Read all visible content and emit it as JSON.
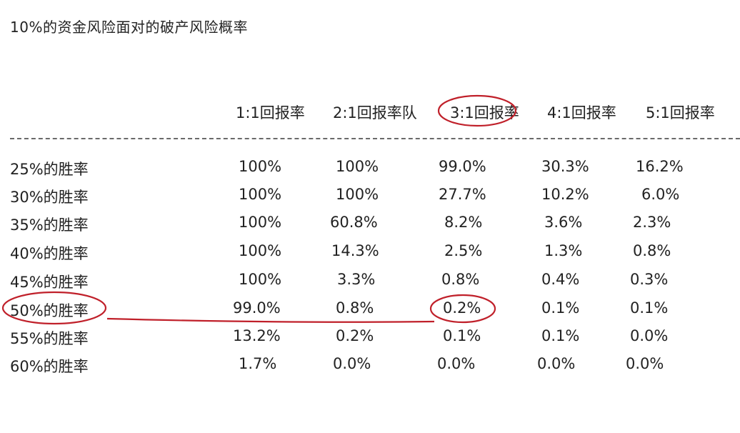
{
  "title": "10%的资金风险面对的破产风险概率",
  "columns": [
    "1:1回报率",
    "2:1回报率队",
    "3:1回报率",
    "4:1回报率",
    "5:1回报率"
  ],
  "rows": [
    {
      "label": "25%的胜率",
      "values": [
        "100%",
        "100%",
        "99.0%",
        "30.3%",
        "16.2%"
      ]
    },
    {
      "label": "30%的胜率",
      "values": [
        "100%",
        "100%",
        "27.7%",
        "10.2%",
        "6.0%"
      ]
    },
    {
      "label": "35%的胜率",
      "values": [
        "100%",
        "60.8%",
        "8.2%",
        "3.6%",
        "2.3%"
      ]
    },
    {
      "label": "40%的胜率",
      "values": [
        "100%",
        "14.3%",
        "2.5%",
        "1.3%",
        "0.8%"
      ]
    },
    {
      "label": "45%的胜率",
      "values": [
        "100%",
        "3.3%",
        "0.8%",
        "0.4%",
        "0.3%"
      ]
    },
    {
      "label": "50%的胜率",
      "values": [
        "99.0%",
        "0.8%",
        "0.2%",
        "0.1%",
        "0.1%"
      ]
    },
    {
      "label": "55%的胜率",
      "values": [
        "13.2%",
        "0.2%",
        "0.1%",
        "0.1%",
        "0.0%"
      ]
    },
    {
      "label": "60%的胜率",
      "values": [
        "1.7%",
        "0.0%",
        "0.0%",
        "0.0%",
        "0.0%"
      ]
    }
  ],
  "annotation_color": "#c0202a"
}
